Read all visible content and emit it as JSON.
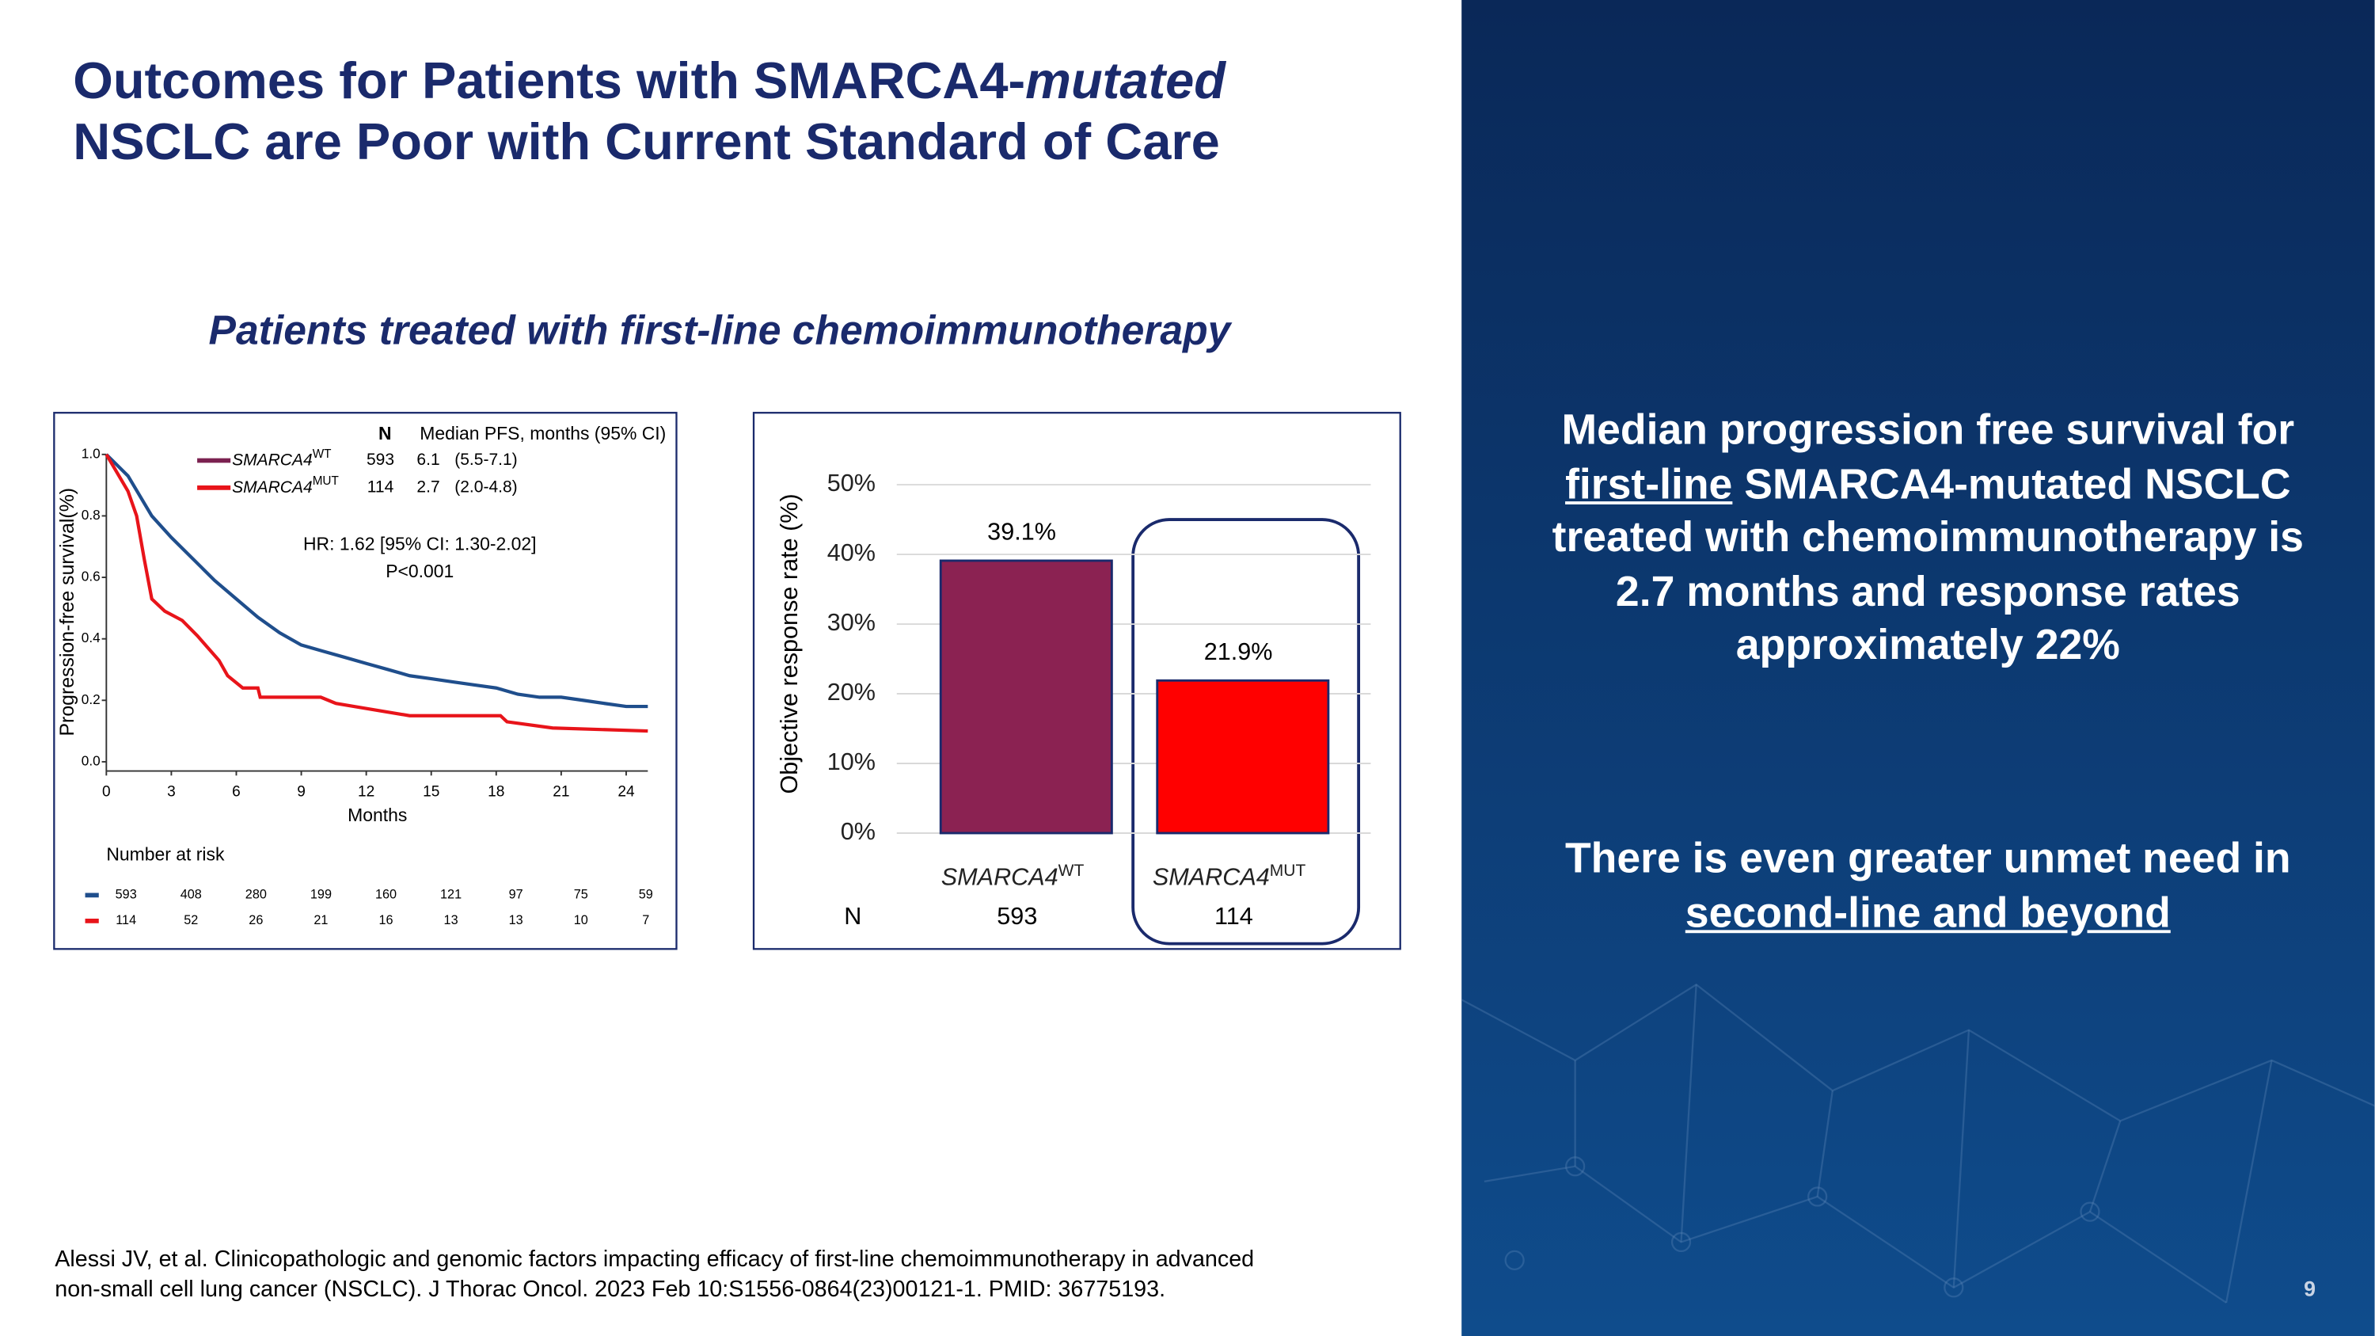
{
  "title": {
    "part1": "Outcomes for Patients with SMARCA4-",
    "italic": "mutated",
    "line2": "NSCLC are Poor with Current Standard of Care"
  },
  "subtitle": "Patients treated with first-line chemoimmunotherapy",
  "chart_data": [
    {
      "type": "line",
      "y_label": "Progression-free survival(%)",
      "x_label": "Months",
      "xlim": [
        0,
        25
      ],
      "ylim": [
        -0.03,
        1.0
      ],
      "xticks": [
        0,
        3,
        6,
        9,
        12,
        15,
        18,
        21,
        24
      ],
      "yticks": [
        {
          "value": 0,
          "label": "0.0"
        },
        0.2,
        0.4,
        0.6,
        0.8,
        {
          "value": 1,
          "label": "1.0"
        }
      ],
      "legend_header": {
        "n": "N",
        "median": "Median PFS, months (95% CI)"
      },
      "series": [
        {
          "name": "SMARCA4",
          "sup": "WT",
          "n": 593,
          "median": 6.1,
          "ci": "(5.5-7.1)",
          "color": "#1f4e8c",
          "legend_color": "#7b2150",
          "x": [
            0,
            1,
            2.1,
            3,
            4,
            5,
            6,
            7,
            8,
            9,
            10,
            11,
            12,
            13,
            14,
            15,
            16,
            17,
            18,
            19,
            20,
            21,
            22,
            23,
            24,
            25
          ],
          "values": [
            1.0,
            0.93,
            0.8,
            0.73,
            0.66,
            0.59,
            0.53,
            0.47,
            0.42,
            0.38,
            0.36,
            0.34,
            0.32,
            0.3,
            0.28,
            0.27,
            0.26,
            0.25,
            0.24,
            0.22,
            0.21,
            0.21,
            0.2,
            0.19,
            0.18,
            0.18
          ]
        },
        {
          "name": "SMARCA4",
          "sup": "MUT",
          "n": 114,
          "median": 2.7,
          "ci": "(2.0-4.8)",
          "color": "#e8141a",
          "legend_color": "#e8141a",
          "x": [
            0,
            1,
            1.4,
            1.75,
            2.1,
            2.7,
            3.5,
            4.2,
            5.2,
            5.6,
            6.3,
            7.0,
            7.1,
            9.9,
            10.6,
            14,
            18.2,
            18.5,
            20.6,
            25
          ],
          "values": [
            1.0,
            0.88,
            0.8,
            0.66,
            0.53,
            0.49,
            0.46,
            0.41,
            0.33,
            0.28,
            0.24,
            0.24,
            0.21,
            0.21,
            0.19,
            0.15,
            0.15,
            0.13,
            0.11,
            0.1
          ]
        }
      ],
      "annotations": [
        "HR: 1.62 [95% CI: 1.30-2.02]",
        "P<0.001"
      ],
      "risk_table": {
        "title": "Number at risk",
        "rows": [
          [
            593,
            408,
            280,
            199,
            160,
            121,
            97,
            75,
            59
          ],
          [
            114,
            52,
            26,
            21,
            16,
            13,
            13,
            10,
            7
          ]
        ]
      }
    },
    {
      "type": "bar",
      "y_label": "Objective response rate (%)",
      "categories": [
        "SMARCA4",
        "SMARCA4"
      ],
      "category_sup": [
        "WT",
        "MUT"
      ],
      "values": [
        39.1,
        21.9
      ],
      "value_labels": [
        "39.1%",
        "21.9%"
      ],
      "colors": [
        "#8b2252",
        "#ff0000"
      ],
      "ylim": [
        0,
        50
      ],
      "yticks": [
        {
          "value": 0,
          "label": "0%"
        },
        {
          "value": 10,
          "label": "10%"
        },
        {
          "value": 20,
          "label": "20%"
        },
        {
          "value": 30,
          "label": "30%"
        },
        {
          "value": 40,
          "label": "40%"
        },
        {
          "value": 50,
          "label": "50%"
        }
      ],
      "grid": true,
      "n_label": "N",
      "n": [
        593,
        114
      ]
    }
  ],
  "summary": {
    "text1": "Median progression free survival for ",
    "underlined": "first-line",
    "text2": " SMARCA4-mutated NSCLC treated with chemoimmunotherapy is 2.7 months and response rates approximately 22%"
  },
  "need": {
    "text": "There is even greater unmet need in ",
    "underlined": "second-line and beyond"
  },
  "citation": [
    "Alessi JV, et al. Clinicopathologic and genomic factors impacting efficacy of first-line chemoimmunotherapy in advanced",
    "non-small cell lung cancer (NSCLC). J Thorac Oncol. 2023 Feb 10:S1556-0864(23)00121-1. PMID: 36775193."
  ],
  "page_number": "9"
}
